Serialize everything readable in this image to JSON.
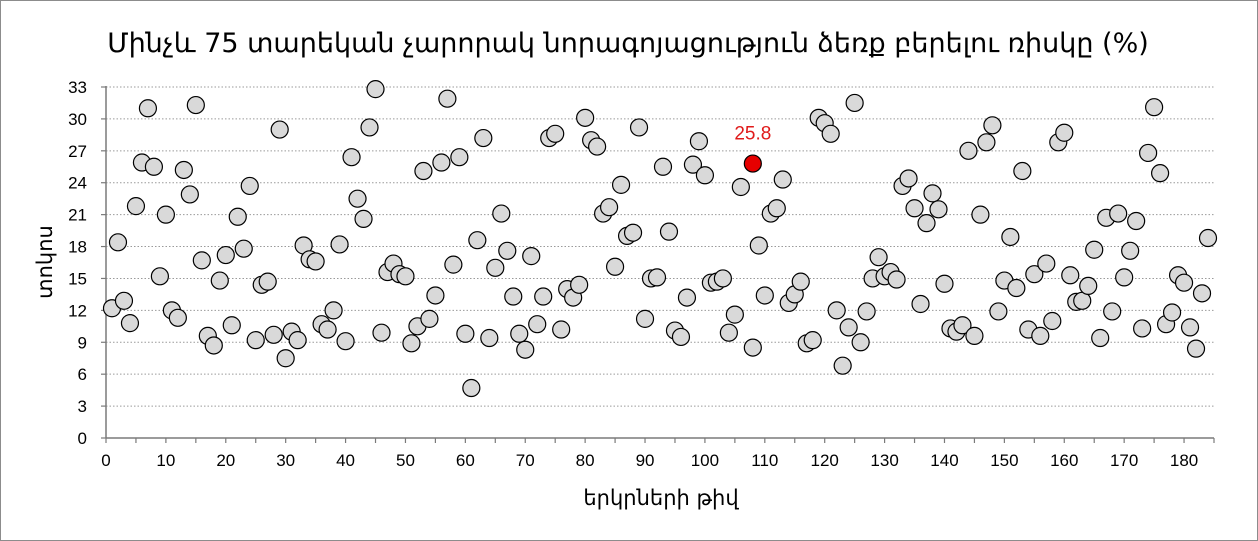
{
  "chart_data": {
    "type": "scatter",
    "title": "Մինչև 75 տարեկան չարորակ նորագոյացություն ձեռք բերելու ռիսկը (%)",
    "xlabel": "երկրների թիվ",
    "ylabel": "տոկոս",
    "xlim": [
      0,
      185
    ],
    "ylim": [
      0,
      33
    ],
    "x_ticks": [
      0,
      10,
      20,
      30,
      40,
      50,
      60,
      70,
      80,
      90,
      100,
      110,
      120,
      130,
      140,
      150,
      160,
      170,
      180
    ],
    "y_ticks": [
      0,
      3,
      6,
      9,
      12,
      15,
      18,
      21,
      24,
      27,
      30,
      33
    ],
    "grid": true,
    "highlight": {
      "x": 108,
      "y": 25.8,
      "label": "25.8",
      "color": "#e60000"
    },
    "point_color": "#d9d9d9",
    "points": [
      [
        1,
        12.2
      ],
      [
        2,
        18.4
      ],
      [
        3,
        12.9
      ],
      [
        4,
        10.8
      ],
      [
        5,
        21.8
      ],
      [
        6,
        25.9
      ],
      [
        7,
        31.0
      ],
      [
        8,
        25.5
      ],
      [
        9,
        15.2
      ],
      [
        10,
        21.0
      ],
      [
        11,
        12.0
      ],
      [
        12,
        11.3
      ],
      [
        13,
        25.2
      ],
      [
        14,
        22.9
      ],
      [
        15,
        31.3
      ],
      [
        16,
        16.7
      ],
      [
        17,
        9.6
      ],
      [
        18,
        8.7
      ],
      [
        19,
        14.8
      ],
      [
        20,
        17.2
      ],
      [
        21,
        10.6
      ],
      [
        22,
        20.8
      ],
      [
        23,
        17.8
      ],
      [
        24,
        23.7
      ],
      [
        25,
        9.2
      ],
      [
        26,
        14.4
      ],
      [
        27,
        14.7
      ],
      [
        28,
        9.7
      ],
      [
        29,
        29.0
      ],
      [
        30,
        7.5
      ],
      [
        31,
        10.0
      ],
      [
        32,
        9.2
      ],
      [
        33,
        18.1
      ],
      [
        34,
        16.8
      ],
      [
        35,
        16.6
      ],
      [
        36,
        10.7
      ],
      [
        37,
        10.2
      ],
      [
        38,
        12.0
      ],
      [
        39,
        18.2
      ],
      [
        40,
        9.1
      ],
      [
        41,
        26.4
      ],
      [
        42,
        22.5
      ],
      [
        43,
        20.6
      ],
      [
        44,
        29.2
      ],
      [
        45,
        32.8
      ],
      [
        46,
        9.9
      ],
      [
        47,
        15.6
      ],
      [
        48,
        16.4
      ],
      [
        49,
        15.4
      ],
      [
        50,
        15.2
      ],
      [
        51,
        8.9
      ],
      [
        52,
        10.5
      ],
      [
        53,
        25.1
      ],
      [
        54,
        11.2
      ],
      [
        55,
        13.4
      ],
      [
        56,
        25.9
      ],
      [
        57,
        31.9
      ],
      [
        58,
        16.3
      ],
      [
        59,
        26.4
      ],
      [
        60,
        9.8
      ],
      [
        61,
        4.7
      ],
      [
        62,
        18.6
      ],
      [
        63,
        28.2
      ],
      [
        64,
        9.4
      ],
      [
        65,
        16.0
      ],
      [
        66,
        21.1
      ],
      [
        67,
        17.6
      ],
      [
        68,
        13.3
      ],
      [
        69,
        9.8
      ],
      [
        70,
        8.3
      ],
      [
        71,
        17.1
      ],
      [
        72,
        10.7
      ],
      [
        73,
        13.3
      ],
      [
        74,
        28.2
      ],
      [
        75,
        28.6
      ],
      [
        76,
        10.2
      ],
      [
        77,
        14.0
      ],
      [
        78,
        13.2
      ],
      [
        79,
        14.4
      ],
      [
        80,
        30.1
      ],
      [
        81,
        28.0
      ],
      [
        82,
        27.4
      ],
      [
        83,
        21.1
      ],
      [
        84,
        21.7
      ],
      [
        85,
        16.1
      ],
      [
        86,
        23.8
      ],
      [
        87,
        19.0
      ],
      [
        88,
        19.3
      ],
      [
        89,
        29.2
      ],
      [
        90,
        11.2
      ],
      [
        91,
        15.0
      ],
      [
        92,
        15.1
      ],
      [
        93,
        25.5
      ],
      [
        94,
        19.4
      ],
      [
        95,
        10.1
      ],
      [
        96,
        9.5
      ],
      [
        97,
        13.2
      ],
      [
        98,
        25.7
      ],
      [
        99,
        27.9
      ],
      [
        100,
        24.7
      ],
      [
        101,
        14.6
      ],
      [
        102,
        14.7
      ],
      [
        103,
        15.0
      ],
      [
        104,
        9.9
      ],
      [
        105,
        11.6
      ],
      [
        106,
        23.6
      ],
      [
        108,
        8.5
      ],
      [
        109,
        18.1
      ],
      [
        110,
        13.4
      ],
      [
        111,
        21.1
      ],
      [
        112,
        21.6
      ],
      [
        113,
        24.3
      ],
      [
        114,
        12.7
      ],
      [
        115,
        13.5
      ],
      [
        116,
        14.7
      ],
      [
        117,
        8.9
      ],
      [
        118,
        9.2
      ],
      [
        119,
        30.1
      ],
      [
        120,
        29.6
      ],
      [
        121,
        28.6
      ],
      [
        122,
        12.0
      ],
      [
        123,
        6.8
      ],
      [
        124,
        10.4
      ],
      [
        125,
        31.5
      ],
      [
        126,
        9.0
      ],
      [
        127,
        11.9
      ],
      [
        128,
        15.0
      ],
      [
        129,
        17.0
      ],
      [
        130,
        15.2
      ],
      [
        131,
        15.6
      ],
      [
        132,
        14.9
      ],
      [
        133,
        23.7
      ],
      [
        134,
        24.4
      ],
      [
        135,
        21.6
      ],
      [
        136,
        12.6
      ],
      [
        137,
        20.2
      ],
      [
        138,
        23.0
      ],
      [
        139,
        21.5
      ],
      [
        140,
        14.5
      ],
      [
        141,
        10.3
      ],
      [
        142,
        10.0
      ],
      [
        143,
        10.6
      ],
      [
        144,
        27.0
      ],
      [
        145,
        9.6
      ],
      [
        146,
        21.0
      ],
      [
        147,
        27.8
      ],
      [
        148,
        29.4
      ],
      [
        149,
        11.9
      ],
      [
        150,
        14.8
      ],
      [
        151,
        18.9
      ],
      [
        152,
        14.1
      ],
      [
        153,
        25.1
      ],
      [
        154,
        10.2
      ],
      [
        155,
        15.4
      ],
      [
        156,
        9.6
      ],
      [
        157,
        16.4
      ],
      [
        158,
        11.0
      ],
      [
        159,
        27.8
      ],
      [
        160,
        28.7
      ],
      [
        161,
        15.3
      ],
      [
        162,
        12.8
      ],
      [
        163,
        12.9
      ],
      [
        164,
        14.3
      ],
      [
        165,
        17.7
      ],
      [
        166,
        9.4
      ],
      [
        167,
        20.7
      ],
      [
        168,
        11.9
      ],
      [
        169,
        21.1
      ],
      [
        170,
        15.1
      ],
      [
        171,
        17.6
      ],
      [
        172,
        20.4
      ],
      [
        173,
        10.3
      ],
      [
        174,
        26.8
      ],
      [
        175,
        31.1
      ],
      [
        176,
        24.9
      ],
      [
        177,
        10.7
      ],
      [
        178,
        11.8
      ],
      [
        179,
        15.3
      ],
      [
        180,
        14.6
      ],
      [
        181,
        10.4
      ],
      [
        182,
        8.4
      ],
      [
        183,
        13.6
      ],
      [
        184,
        18.8
      ]
    ]
  }
}
